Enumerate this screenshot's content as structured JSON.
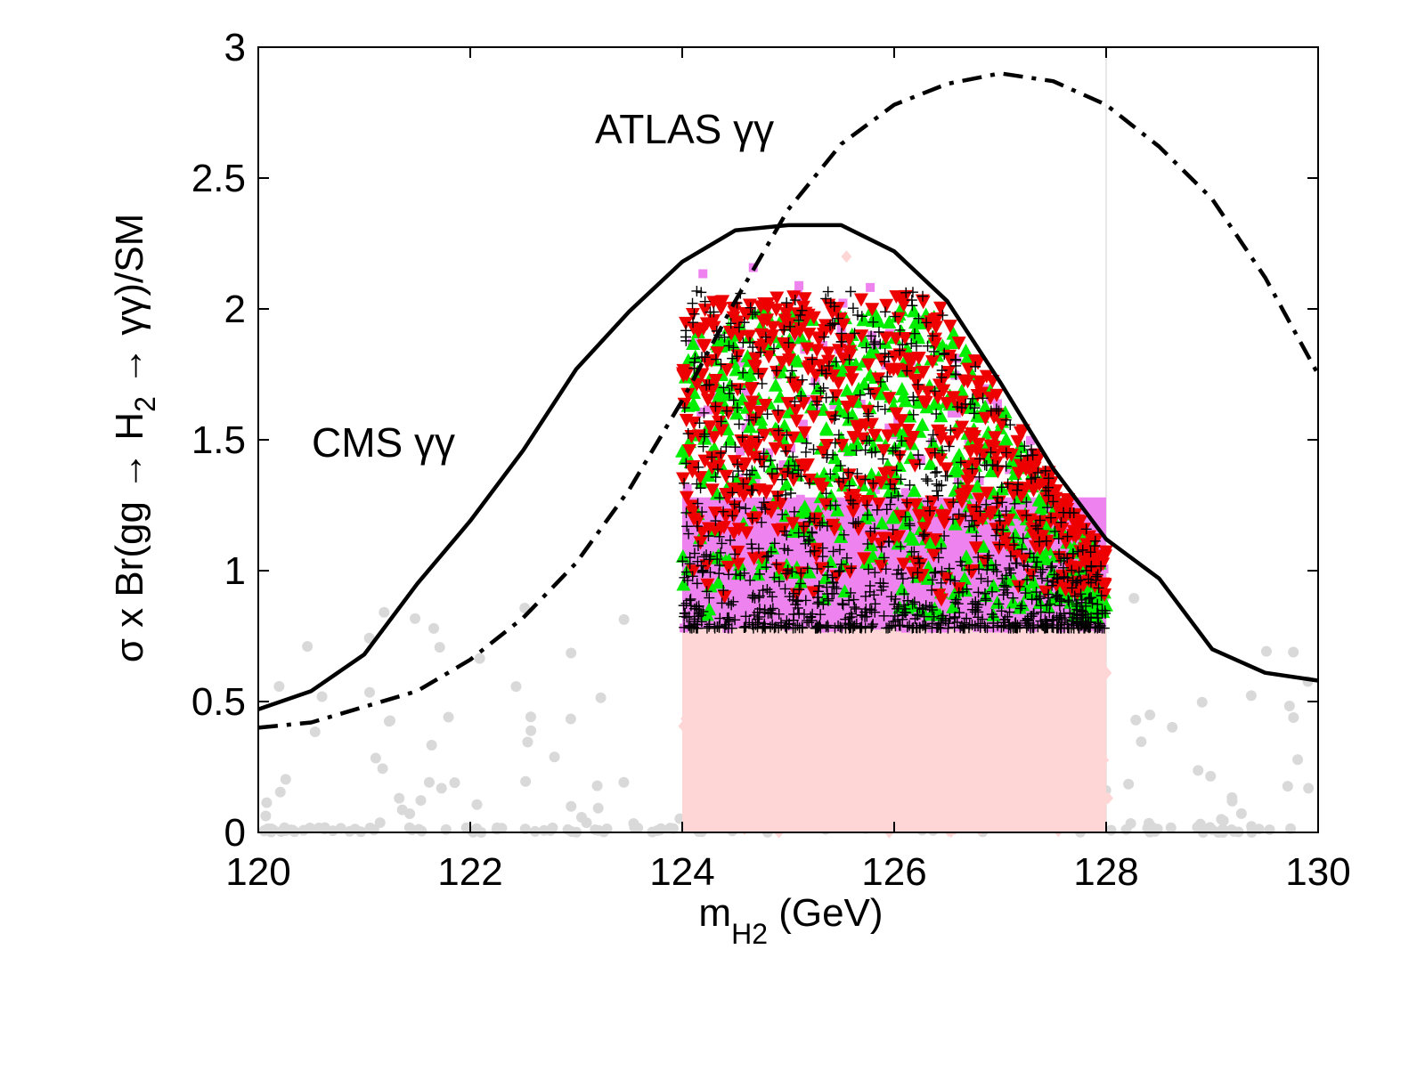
{
  "chart_data": {
    "type": "scatter",
    "title": "",
    "xlabel_main": "m",
    "xlabel_sub": "H2",
    "xlabel_unit": " (GeV)",
    "ylabel_pre": "σ x Br(gg → H",
    "ylabel_sub": "2",
    "ylabel_post": " → γγ)/SM",
    "xlim": [
      120,
      130
    ],
    "ylim": [
      0,
      3
    ],
    "xticks": [
      120,
      122,
      124,
      126,
      128,
      130
    ],
    "xtick_labels": [
      "120",
      "122",
      "124",
      "126",
      "128",
      "130"
    ],
    "yticks": [
      0,
      0.5,
      1,
      1.5,
      2,
      2.5,
      3
    ],
    "ytick_labels": [
      "0",
      "0.5",
      "1",
      "1.5",
      "2",
      "2.5",
      "3"
    ],
    "grid": false,
    "annotations": [
      {
        "text": "ATLAS γγ",
        "x": 123.3,
        "y": 2.68
      },
      {
        "text": "CMS γγ",
        "x": 120.5,
        "y": 1.45
      }
    ],
    "series": [
      {
        "name": "CMS γγ limit",
        "style": "solid",
        "color": "#000000",
        "x": [
          120,
          120.5,
          121,
          121.5,
          122,
          122.5,
          123,
          123.5,
          124,
          124.5,
          125,
          125.5,
          126,
          126.5,
          127,
          127.5,
          128,
          128.5,
          129,
          129.5,
          130
        ],
        "y": [
          0.47,
          0.54,
          0.68,
          0.95,
          1.19,
          1.46,
          1.77,
          1.99,
          2.18,
          2.3,
          2.32,
          2.32,
          2.22,
          2.03,
          1.72,
          1.39,
          1.12,
          0.97,
          0.7,
          0.61,
          0.58
        ]
      },
      {
        "name": "ATLAS γγ limit",
        "style": "dashdot",
        "color": "#000000",
        "x": [
          120,
          120.5,
          121,
          121.5,
          122,
          122.5,
          123,
          123.5,
          124,
          124.5,
          125,
          125.5,
          126,
          126.5,
          127,
          127.5,
          128,
          128.5,
          129,
          129.5,
          130
        ],
        "y": [
          0.4,
          0.42,
          0.48,
          0.54,
          0.66,
          0.82,
          1.03,
          1.31,
          1.65,
          2.03,
          2.38,
          2.63,
          2.78,
          2.86,
          2.9,
          2.87,
          2.78,
          2.62,
          2.42,
          2.12,
          1.75
        ]
      },
      {
        "name": "background points",
        "marker": "circle",
        "color": "#d9d9d9",
        "x_range": [
          120,
          130
        ],
        "y_range": [
          0,
          0.9
        ]
      },
      {
        "name": "pink diamonds",
        "marker": "diamond",
        "color": "#ffd6d6",
        "x_range": [
          124,
          128
        ],
        "y_range": [
          0,
          0.78
        ]
      },
      {
        "name": "violet squares",
        "marker": "square",
        "color": "#ee82ee",
        "x_range": [
          124,
          128
        ],
        "y_range": [
          0.78,
          2.17
        ]
      },
      {
        "name": "green up-triangles",
        "marker": "triangle-up",
        "color": "#00ee00",
        "x_range": [
          124,
          128
        ],
        "y_range": [
          0.78,
          2.0
        ]
      },
      {
        "name": "red down-triangles",
        "marker": "triangle-down",
        "color": "#ee0000",
        "x_range": [
          124,
          128
        ],
        "y_range": [
          0.85,
          2.05
        ]
      },
      {
        "name": "black crosses",
        "marker": "plus",
        "color": "#000000",
        "x_range": [
          124,
          128
        ],
        "y_range": [
          0.78,
          2.07
        ]
      }
    ]
  }
}
